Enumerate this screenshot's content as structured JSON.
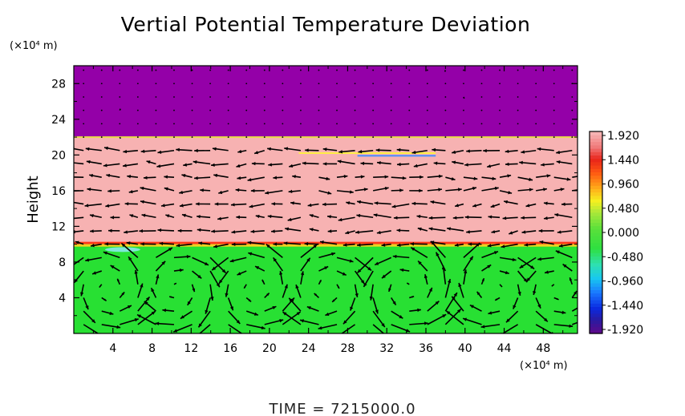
{
  "chart_data": {
    "type": "heatmap",
    "title": "Vertial Potential Temperature Deviation",
    "ylabel": "Height",
    "y_unit": "(×10⁴ m)",
    "x_unit": "(×10⁴ m)",
    "xlim": [
      0,
      51.5
    ],
    "ylim": [
      0,
      30
    ],
    "x_ticks": [
      "4",
      "8",
      "12",
      "16",
      "20",
      "24",
      "28",
      "32",
      "36",
      "40",
      "44",
      "48"
    ],
    "y_ticks": [
      "4",
      "8",
      "12",
      "16",
      "20",
      "24",
      "28"
    ],
    "colorbar": {
      "labels": [
        "1.920",
        "1.440",
        "0.960",
        "0.480",
        "0.000",
        "-0.480",
        "-0.960",
        "-1.440",
        "-1.920"
      ],
      "range": [
        -1.92,
        1.92
      ]
    },
    "regions": [
      {
        "name": "upper",
        "y_range": [
          22,
          30
        ],
        "value": -1.92
      },
      {
        "name": "middle",
        "y_range": [
          10,
          22
        ],
        "value": 1.92
      },
      {
        "name": "lower",
        "y_range": [
          0,
          10
        ],
        "value": 0.0
      }
    ],
    "vector_field": "velocity arrows; circulation cells in lower layer",
    "colors": {
      "upper": "#9400a8",
      "middle": "#f7b2b2",
      "lower": "#28e033"
    }
  },
  "footer": {
    "time_label": "TIME  =  7215000.0"
  }
}
